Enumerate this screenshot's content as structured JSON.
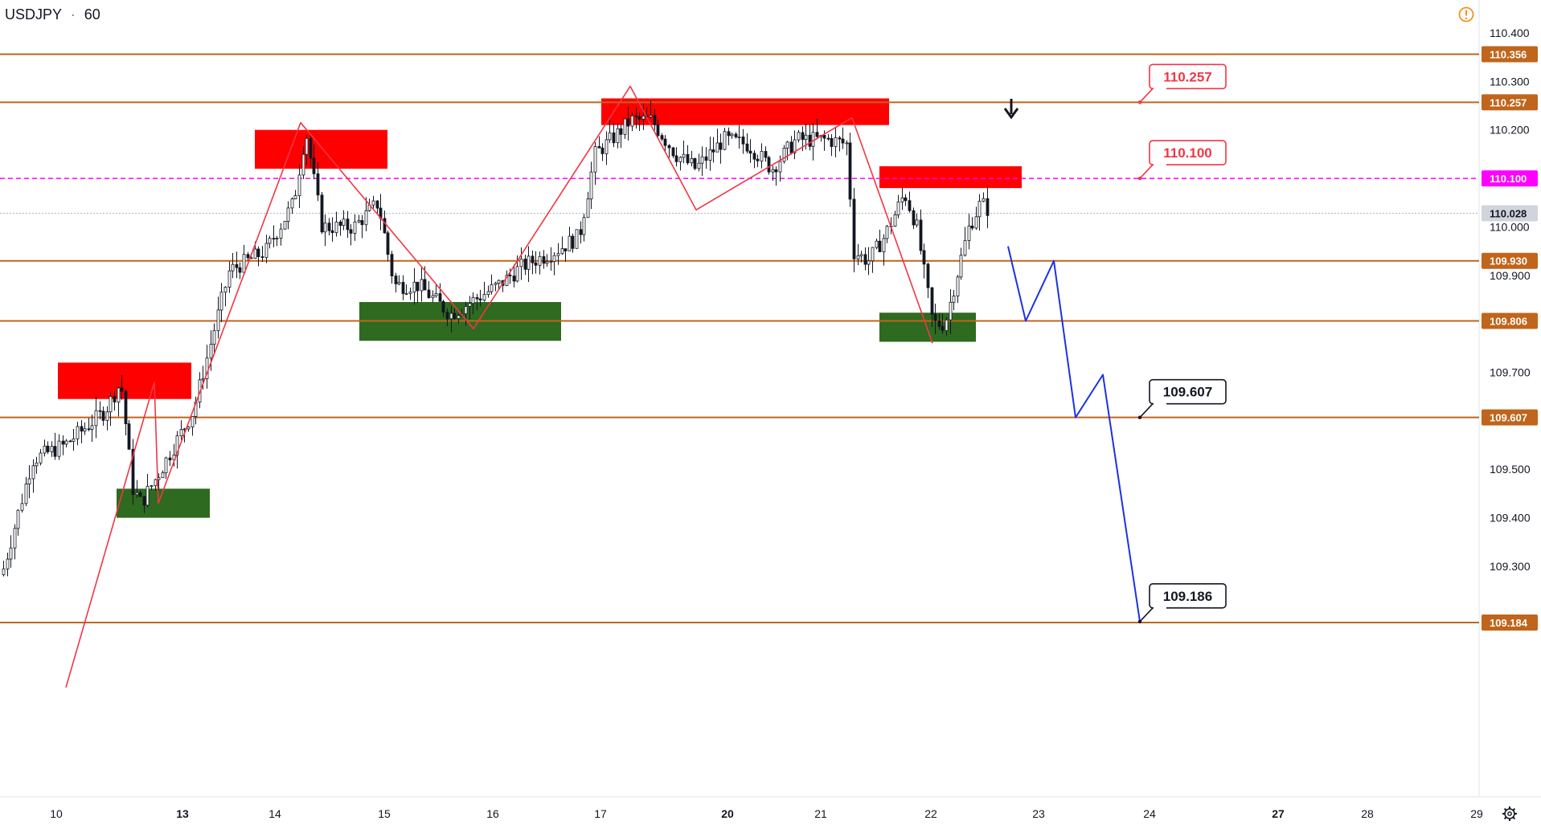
{
  "header": {
    "symbol": "USDJPY",
    "separator": "·",
    "interval": "60"
  },
  "colors": {
    "background": "#ffffff",
    "level_line": "#c0651b",
    "magenta_line": "#ff00ff",
    "current_line": "#b2b5be",
    "red_zone": "#ff0000",
    "green_zone": "#2e6a1f",
    "zigzag": "#f23645",
    "projection": "#1c31e6",
    "candle": "#131722",
    "warning": "#f7931a",
    "current_tag": "#d1d4dc"
  },
  "chart_data": {
    "type": "candlestick",
    "title": "USDJPY · 60",
    "price_axis_ticks": [
      "110.400",
      "110.300",
      "110.200",
      "110.000",
      "109.900",
      "109.700",
      "109.500",
      "109.400",
      "109.300"
    ],
    "price_axis_ticks_hidden": [
      "109.800",
      "109.600",
      "109.200",
      "110.100"
    ],
    "time_axis_labels": [
      {
        "label": "10",
        "bold": false
      },
      {
        "label": "13",
        "bold": true
      },
      {
        "label": "14",
        "bold": false
      },
      {
        "label": "15",
        "bold": false
      },
      {
        "label": "16",
        "bold": false
      },
      {
        "label": "17",
        "bold": false
      },
      {
        "label": "20",
        "bold": true
      },
      {
        "label": "21",
        "bold": false
      },
      {
        "label": "22",
        "bold": false
      },
      {
        "label": "23",
        "bold": false
      },
      {
        "label": "24",
        "bold": false
      },
      {
        "label": "27",
        "bold": true
      },
      {
        "label": "28",
        "bold": false
      },
      {
        "label": "29",
        "bold": false
      }
    ],
    "horizontal_levels": [
      {
        "price": 110.356,
        "label": "110.356",
        "style": "level"
      },
      {
        "price": 110.257,
        "label": "110.257",
        "style": "level"
      },
      {
        "price": 110.1,
        "label": "110.100",
        "style": "magenta-dashed"
      },
      {
        "price": 110.028,
        "label": "110.028",
        "style": "current"
      },
      {
        "price": 109.93,
        "label": "109.930",
        "style": "level"
      },
      {
        "price": 109.806,
        "label": "109.806",
        "style": "level"
      },
      {
        "price": 109.607,
        "label": "109.607",
        "style": "level"
      },
      {
        "price": 109.184,
        "label": "109.184",
        "style": "level"
      }
    ],
    "callouts": [
      {
        "label": "110.257",
        "price": 110.257,
        "style": "red"
      },
      {
        "label": "110.100",
        "price": 110.1,
        "style": "red"
      },
      {
        "label": "109.607",
        "price": 109.607,
        "style": "black"
      },
      {
        "label": "109.186",
        "price": 109.186,
        "style": "black"
      }
    ],
    "supply_zones": [
      {
        "price_top": 109.72,
        "price_bottom": 109.645
      },
      {
        "price_top": 110.2,
        "price_bottom": 110.12
      },
      {
        "price_top": 110.265,
        "price_bottom": 110.21
      },
      {
        "price_top": 110.125,
        "price_bottom": 110.08
      }
    ],
    "demand_zones": [
      {
        "price_top": 109.46,
        "price_bottom": 109.4
      },
      {
        "price_top": 109.845,
        "price_bottom": 109.765
      },
      {
        "price_top": 109.823,
        "price_bottom": 109.763
      }
    ],
    "pattern_path_prices": [
      109.05,
      109.68,
      109.43,
      110.215,
      109.79,
      110.29,
      110.035,
      110.225,
      109.76
    ],
    "projection_path_prices": [
      109.96,
      109.806,
      109.93,
      109.607,
      109.695,
      109.186
    ],
    "candles_ohlc_sample": [
      [
        109.25,
        109.33,
        109.22,
        109.3
      ],
      [
        109.3,
        109.42,
        109.28,
        109.4
      ],
      [
        109.4,
        109.5,
        109.35,
        109.46
      ],
      [
        109.46,
        109.6,
        109.44,
        109.55
      ],
      [
        109.55,
        109.64,
        109.5,
        109.58
      ],
      [
        109.58,
        109.7,
        109.56,
        109.66
      ],
      [
        109.66,
        109.68,
        109.45,
        109.5
      ],
      [
        109.5,
        109.52,
        109.43,
        109.48
      ],
      [
        109.48,
        109.6,
        109.46,
        109.58
      ],
      [
        109.58,
        109.7,
        109.57,
        109.69
      ],
      [
        109.69,
        109.9,
        109.68,
        109.88
      ],
      [
        109.88,
        109.95,
        109.8,
        109.92
      ],
      [
        109.92,
        110.22,
        109.9,
        110.15
      ],
      [
        110.15,
        110.18,
        109.95,
        110.02
      ],
      [
        110.02,
        110.12,
        109.9,
        109.95
      ],
      [
        109.95,
        110.05,
        109.85,
        109.98
      ],
      [
        109.98,
        110.02,
        109.82,
        109.88
      ],
      [
        109.88,
        109.95,
        109.8,
        109.85
      ],
      [
        109.85,
        109.95,
        109.81,
        109.92
      ],
      [
        109.92,
        110.0,
        109.9,
        109.95
      ],
      [
        109.95,
        110.05,
        109.93,
        110.0
      ],
      [
        110.0,
        110.2,
        109.98,
        110.17
      ],
      [
        110.17,
        110.29,
        110.1,
        110.22
      ],
      [
        110.22,
        110.25,
        110.12,
        110.2
      ],
      [
        110.2,
        110.22,
        110.05,
        110.1
      ],
      [
        110.1,
        110.2,
        110.08,
        110.18
      ],
      [
        110.18,
        110.2,
        110.12,
        110.16
      ],
      [
        110.16,
        110.2,
        110.13,
        110.18
      ],
      [
        110.18,
        110.22,
        110.14,
        110.2
      ],
      [
        110.2,
        110.21,
        109.9,
        109.98
      ],
      [
        109.98,
        110.05,
        109.88,
        109.93
      ],
      [
        109.93,
        110.12,
        109.92,
        110.08
      ],
      [
        110.08,
        110.1,
        109.85,
        109.9
      ],
      [
        109.9,
        109.92,
        109.76,
        109.8
      ],
      [
        109.8,
        109.9,
        109.78,
        109.88
      ],
      [
        109.88,
        110.11,
        109.87,
        110.05
      ],
      [
        110.05,
        110.06,
        109.99,
        110.02
      ],
      [
        110.02,
        110.04,
        110.0,
        110.03
      ]
    ]
  }
}
